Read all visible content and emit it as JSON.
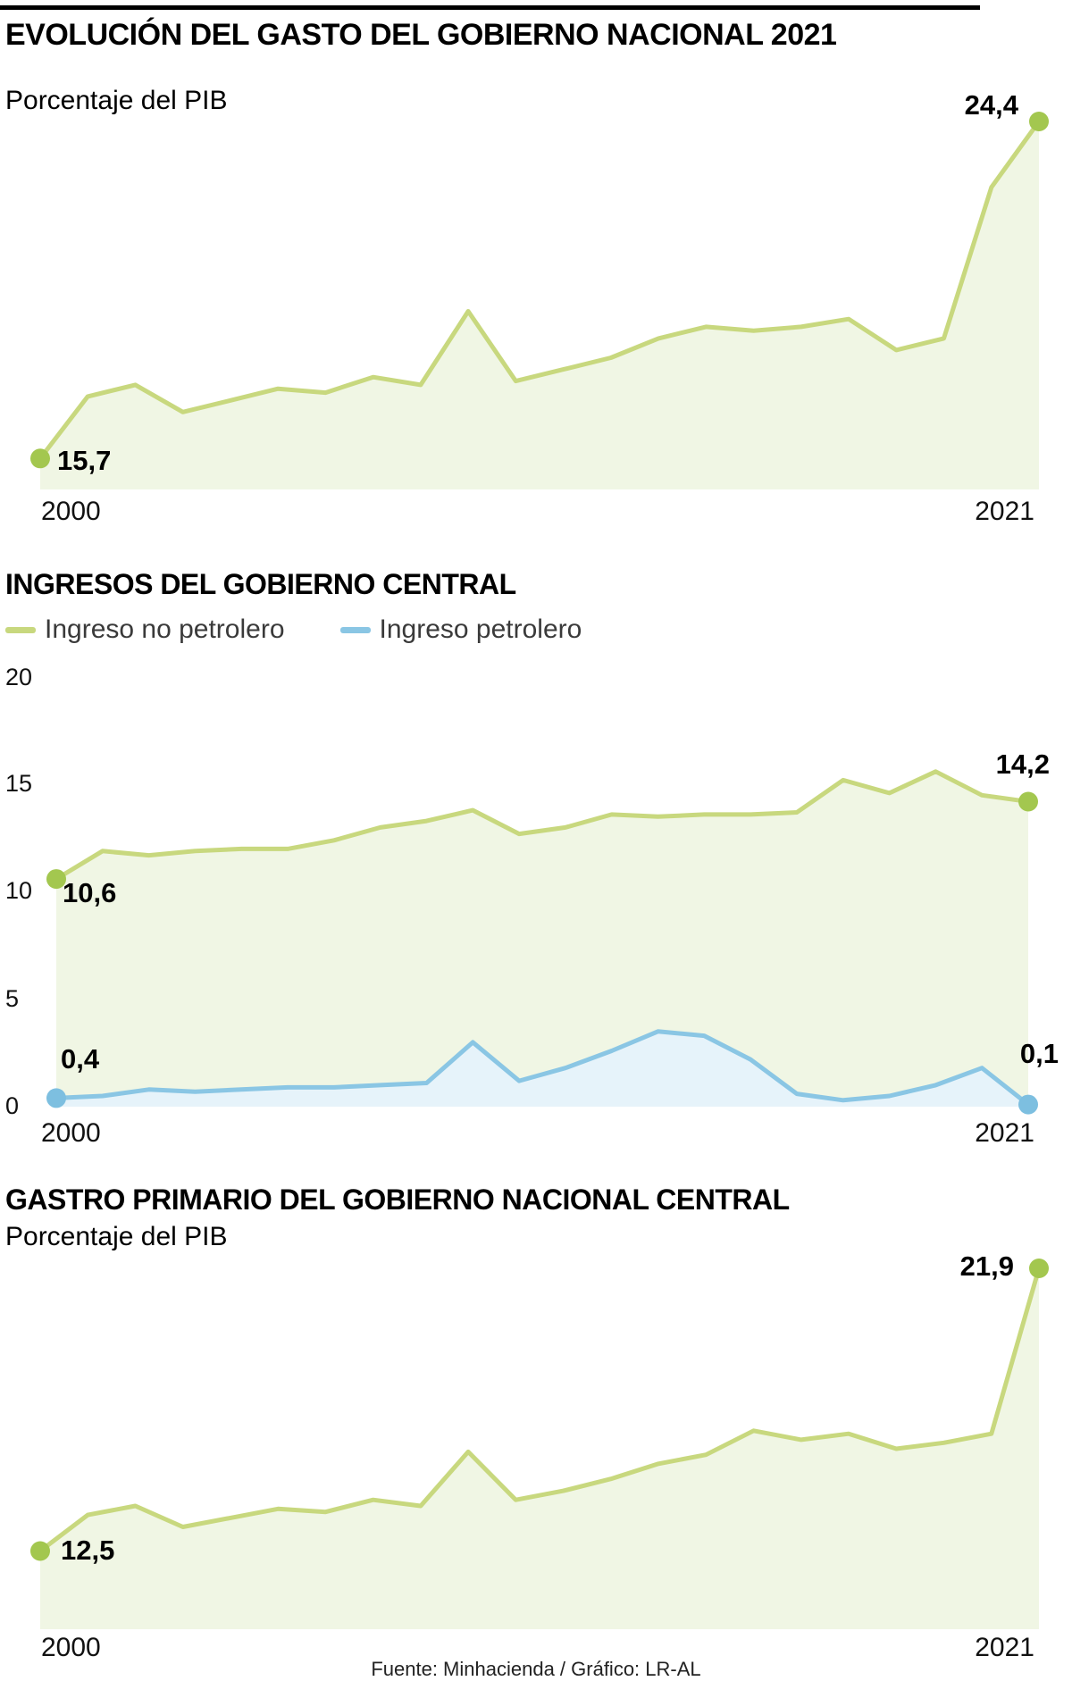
{
  "footer": {
    "source": "Fuente: Minhacienda / Gráfico: LR-AL"
  },
  "chart_data": [
    {
      "type": "area",
      "title": "EVOLUCIÓN DEL GASTO DEL GOBIERNO NACIONAL 2021",
      "subtitle": "Porcentaje del PIB",
      "x_labels": [
        "2000",
        "2021"
      ],
      "years": [
        2000,
        2001,
        2002,
        2003,
        2004,
        2005,
        2006,
        2007,
        2008,
        2009,
        2010,
        2011,
        2012,
        2013,
        2014,
        2015,
        2016,
        2017,
        2018,
        2019,
        2020,
        2021
      ],
      "values": [
        15.7,
        17.3,
        17.6,
        16.9,
        17.2,
        17.5,
        17.4,
        17.8,
        17.6,
        19.5,
        17.7,
        18.0,
        18.3,
        18.8,
        19.1,
        19.0,
        19.1,
        19.3,
        18.5,
        18.8,
        22.7,
        24.4
      ],
      "start_label": "15,7",
      "end_label": "24,4",
      "line_color": "#c8d87e",
      "fill_color": "#f0f6e4",
      "marker_color": "#a3c74f"
    },
    {
      "type": "area",
      "title": "INGRESOS DEL GOBIERNO CENTRAL",
      "x_labels": [
        "2000",
        "2021"
      ],
      "years": [
        2000,
        2001,
        2002,
        2003,
        2004,
        2005,
        2006,
        2007,
        2008,
        2009,
        2010,
        2011,
        2012,
        2013,
        2014,
        2015,
        2016,
        2017,
        2018,
        2019,
        2020,
        2021
      ],
      "y_ticks": [
        "20",
        "15",
        "10",
        "5",
        "0"
      ],
      "ylim": [
        0,
        20
      ],
      "series": [
        {
          "name": "Ingreso no petrolero",
          "values": [
            10.6,
            11.9,
            11.7,
            11.9,
            12.0,
            12.0,
            12.4,
            13.0,
            13.3,
            13.8,
            12.7,
            13.0,
            13.6,
            13.5,
            13.6,
            13.6,
            13.7,
            15.2,
            14.6,
            15.6,
            14.5,
            14.2
          ],
          "start_label": "10,6",
          "end_label": "14,2",
          "line_color": "#c8d87e",
          "fill_color": "#f0f6e4",
          "marker_color": "#a3c74f"
        },
        {
          "name": "Ingreso petrolero",
          "values": [
            0.4,
            0.5,
            0.8,
            0.7,
            0.8,
            0.9,
            0.9,
            1.0,
            1.1,
            3.0,
            1.2,
            1.8,
            2.6,
            3.5,
            3.3,
            2.2,
            0.6,
            0.3,
            0.5,
            1.0,
            1.8,
            0.1
          ],
          "start_label": "0,4",
          "end_label": "0,1",
          "line_color": "#8ac6e4",
          "fill_color": "#e6f3fa",
          "marker_color": "#7dbfe0"
        }
      ]
    },
    {
      "type": "area",
      "title": "GASTRO PRIMARIO DEL GOBIERNO NACIONAL CENTRAL",
      "subtitle": "Porcentaje del PIB",
      "x_labels": [
        "2000",
        "2021"
      ],
      "years": [
        2000,
        2001,
        2002,
        2003,
        2004,
        2005,
        2006,
        2007,
        2008,
        2009,
        2010,
        2011,
        2012,
        2013,
        2014,
        2015,
        2016,
        2017,
        2018,
        2019,
        2020,
        2021
      ],
      "values": [
        12.5,
        13.7,
        14.0,
        13.3,
        13.6,
        13.9,
        13.8,
        14.2,
        14.0,
        15.8,
        14.2,
        14.5,
        14.9,
        15.4,
        15.7,
        16.5,
        16.2,
        16.4,
        15.9,
        16.1,
        16.4,
        21.9
      ],
      "start_label": "12,5",
      "end_label": "21,9",
      "line_color": "#c8d87e",
      "fill_color": "#f0f6e4",
      "marker_color": "#a3c74f"
    }
  ]
}
